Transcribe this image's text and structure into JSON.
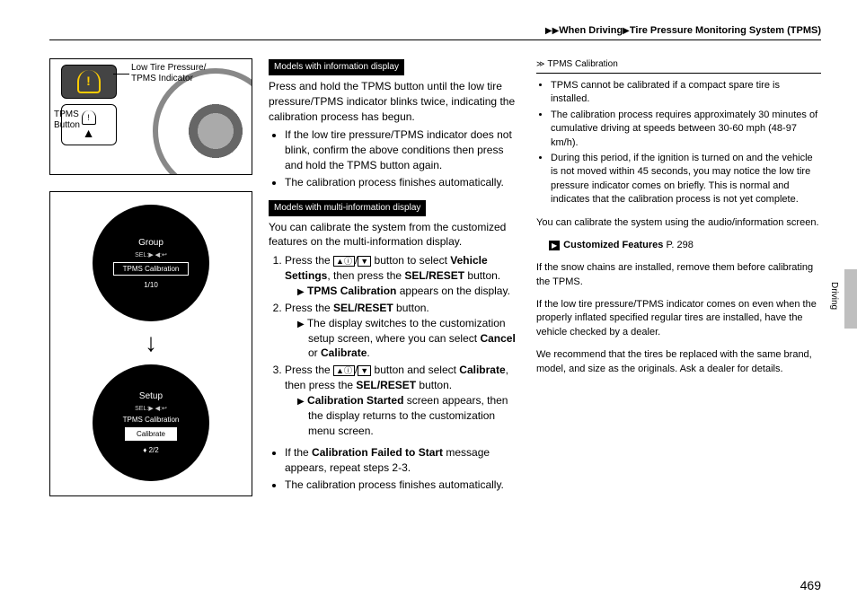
{
  "header": {
    "crumb1": "When Driving",
    "crumb2": "Tire Pressure Monitoring System (TPMS)"
  },
  "fig1": {
    "indicator_label": "Low Tire Pressure/\nTPMS Indicator",
    "button_label": "TPMS\nButton"
  },
  "fig2": {
    "gauge1_title": "Group",
    "gauge1_sub": "SEL:▶  ◀:↩",
    "gauge1_pill": "TPMS Calibration",
    "gauge1_footer": "1/10",
    "gauge2_title": "Setup",
    "gauge2_sub": "SEL:▶  ◀:↩",
    "gauge2_line": "TPMS Calibration",
    "gauge2_pill": "Calibrate",
    "gauge2_footer": "2/2"
  },
  "mid": {
    "label1": "Models with information display",
    "p1": "Press and hold the TPMS button until the low tire pressure/TPMS indicator blinks twice, indicating the calibration process has begun.",
    "b1": "If the low tire pressure/TPMS indicator does not blink, confirm the above conditions then press and hold the TPMS button again.",
    "b2": "The calibration process finishes automatically.",
    "label2": "Models with multi-information display",
    "p2": "You can calibrate the system from the customized features on the multi-information display.",
    "s1_a": "Press the ",
    "s1_b": " button to select ",
    "s1_bold1": "Vehicle Settings",
    "s1_c": ", then press the ",
    "s1_bold2": "SEL/RESET",
    "s1_d": " button.",
    "s1_sub_bold": "TPMS Calibration",
    "s1_sub_rest": " appears on the display.",
    "s2_a": "Press the ",
    "s2_bold": "SEL/RESET",
    "s2_b": " button.",
    "s2_sub": "The display switches to the customization setup screen, where you can select ",
    "s2_sub_bold1": "Cancel",
    "s2_sub_mid": " or ",
    "s2_sub_bold2": "Calibrate",
    "s3_a": "Press the ",
    "s3_b": " button and select ",
    "s3_bold1": "Calibrate",
    "s3_c": ", then press the ",
    "s3_bold2": "SEL/RESET",
    "s3_d": " button.",
    "s3_sub_bold": "Calibration Started",
    "s3_sub_rest": " screen appears, then the display returns to the customization menu screen.",
    "tail1_a": "If the ",
    "tail1_bold": "Calibration Failed to Start",
    "tail1_b": " message appears, repeat steps 2-3.",
    "tail2": "The calibration process finishes automatically."
  },
  "right": {
    "sec_title": "TPMS Calibration",
    "b1": "TPMS cannot be calibrated if a compact spare tire is installed.",
    "b2": "The calibration process requires approximately 30 minutes of cumulative driving at speeds between 30-60 mph (48-97 km/h).",
    "b3": "During this period, if the ignition is turned on and the vehicle is not moved within 45 seconds, you may notice the low tire pressure indicator comes on briefly. This is normal and indicates that the calibration process is not yet complete.",
    "p1": "You can calibrate the system using the audio/information screen.",
    "ref_bold": "Customized Features",
    "ref_page": " P. 298",
    "p2": "If the snow chains are installed, remove them before calibrating the TPMS.",
    "p3": "If the low tire pressure/TPMS indicator comes on even when the properly inflated specified regular tires are installed, have the vehicle checked by a dealer.",
    "p4": "We recommend that the tires be replaced with the same brand, model, and size as the originals. Ask a dealer for details."
  },
  "side_label": "Driving",
  "page_number": "469"
}
